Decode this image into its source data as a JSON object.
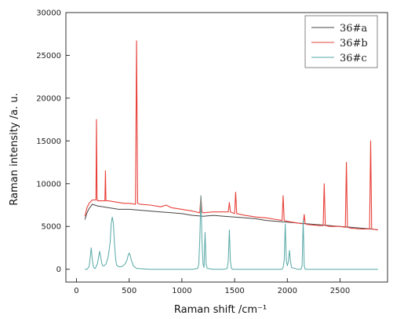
{
  "chart_data": {
    "type": "line",
    "title": "",
    "xlabel": "Raman shift /cm⁻¹",
    "ylabel": "Raman intensity /a. u.",
    "xlim": [
      -100,
      2950
    ],
    "ylim": [
      -1500,
      30000
    ],
    "x_ticks": [
      0,
      500,
      1000,
      1500,
      2000,
      2500
    ],
    "x_tick_labels": [
      "0",
      "500",
      "1000",
      "1500",
      "2000",
      "2500"
    ],
    "y_ticks": [
      0,
      5000,
      10000,
      15000,
      20000,
      25000,
      30000
    ],
    "y_tick_labels": [
      "0",
      "5000",
      "10000",
      "15000",
      "20000",
      "25000",
      "30000"
    ],
    "grid": false,
    "legend_position": "top-right",
    "series": [
      {
        "name": "36#a",
        "color": "#444444",
        "x": [
          80,
          100,
          120,
          150,
          200,
          300,
          400,
          500,
          600,
          700,
          800,
          900,
          1000,
          1100,
          1200,
          1300,
          1400,
          1500,
          1600,
          1700,
          1800,
          1900,
          2000,
          2100,
          2200,
          2300,
          2400,
          2500,
          2600,
          2700,
          2800,
          2860
        ],
        "y": [
          5800,
          6600,
          7100,
          7600,
          7400,
          7200,
          7000,
          7000,
          6900,
          6800,
          6700,
          6600,
          6500,
          6300,
          6200,
          6300,
          6200,
          6100,
          6000,
          5900,
          5700,
          5600,
          5500,
          5400,
          5300,
          5200,
          5100,
          5000,
          4900,
          4800,
          4700,
          4600
        ]
      },
      {
        "name": "36#b",
        "color": "#e8413a",
        "x": [
          80,
          100,
          120,
          150,
          185,
          190,
          195,
          200,
          270,
          275,
          280,
          300,
          350,
          400,
          450,
          500,
          560,
          570,
          580,
          600,
          700,
          800,
          850,
          900,
          1000,
          1100,
          1170,
          1180,
          1190,
          1200,
          1300,
          1400,
          1440,
          1450,
          1460,
          1500,
          1510,
          1520,
          1600,
          1700,
          1800,
          1900,
          1950,
          1960,
          1970,
          2000,
          2100,
          2150,
          2160,
          2170,
          2200,
          2300,
          2340,
          2350,
          2360,
          2400,
          2500,
          2550,
          2560,
          2570,
          2600,
          2700,
          2780,
          2790,
          2800,
          2860
        ],
        "y": [
          6200,
          7200,
          7700,
          8100,
          8100,
          17500,
          8300,
          8000,
          8000,
          11500,
          8000,
          8000,
          7900,
          7800,
          7700,
          7700,
          7600,
          26700,
          7700,
          7600,
          7500,
          7300,
          7500,
          7200,
          7000,
          6800,
          6600,
          8600,
          6700,
          6600,
          6700,
          6700,
          6700,
          7800,
          6700,
          6500,
          9000,
          6500,
          6300,
          6100,
          6000,
          5800,
          5700,
          8600,
          5700,
          5600,
          5400,
          5300,
          6400,
          5300,
          5200,
          5100,
          5100,
          10000,
          5100,
          5000,
          5000,
          4900,
          12500,
          4900,
          4800,
          4700,
          4700,
          15000,
          4700,
          4600
        ]
      },
      {
        "name": "36#c",
        "color": "#56a8a6",
        "x": [
          80,
          100,
          120,
          130,
          140,
          150,
          160,
          170,
          180,
          200,
          210,
          220,
          230,
          240,
          250,
          260,
          280,
          300,
          320,
          330,
          340,
          350,
          360,
          370,
          380,
          400,
          430,
          460,
          480,
          490,
          500,
          510,
          520,
          540,
          570,
          700,
          900,
          1100,
          1150,
          1160,
          1170,
          1180,
          1190,
          1200,
          1210,
          1220,
          1230,
          1240,
          1300,
          1400,
          1430,
          1440,
          1450,
          1460,
          1470,
          1480,
          1500,
          1700,
          1900,
          1950,
          1960,
          1970,
          1980,
          1990,
          2000,
          2010,
          2020,
          2030,
          2040,
          2100,
          2130,
          2140,
          2150,
          2160,
          2170,
          2200,
          2400,
          2600,
          2800,
          2860
        ],
        "y": [
          0,
          0,
          300,
          1300,
          2500,
          1200,
          300,
          100,
          100,
          700,
          1400,
          2100,
          1400,
          700,
          400,
          400,
          600,
          1400,
          3200,
          5400,
          6100,
          5400,
          3200,
          1400,
          500,
          300,
          300,
          600,
          1100,
          1600,
          1900,
          1600,
          1100,
          400,
          100,
          0,
          0,
          0,
          100,
          600,
          3500,
          8600,
          3500,
          600,
          200,
          4300,
          600,
          100,
          0,
          0,
          100,
          1000,
          4600,
          1000,
          100,
          0,
          0,
          0,
          0,
          0,
          200,
          1000,
          5300,
          1000,
          400,
          900,
          2200,
          900,
          200,
          0,
          0,
          400,
          5700,
          400,
          0,
          0,
          0,
          0,
          0,
          0
        ]
      }
    ]
  }
}
